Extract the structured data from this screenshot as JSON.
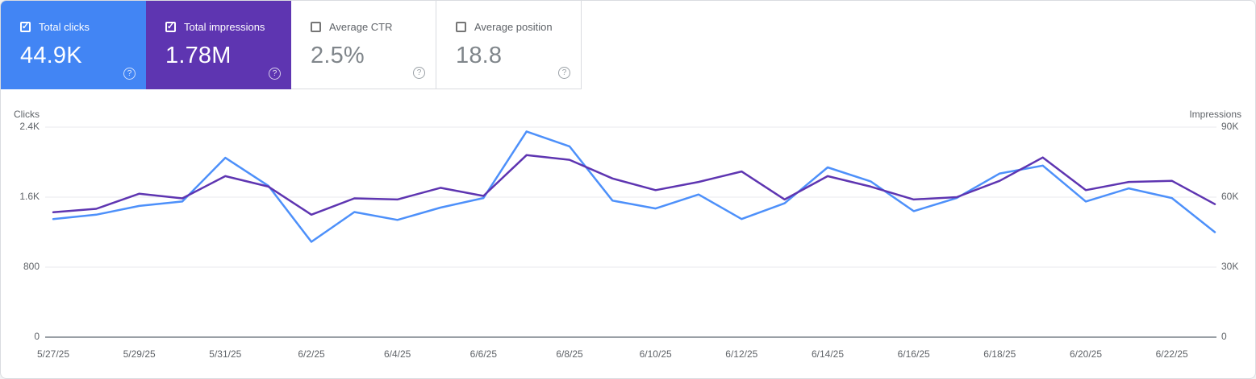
{
  "icons": {
    "help_glyph": "?",
    "check_glyph": "✓"
  },
  "cards": [
    {
      "label": "Total clicks",
      "value": "44.9K",
      "checked": true,
      "bg_color": "#4285f4"
    },
    {
      "label": "Total impressions",
      "value": "1.78M",
      "checked": true,
      "bg_color": "#5e35b1"
    },
    {
      "label": "Average CTR",
      "value": "2.5%",
      "checked": false,
      "bg_color": ""
    },
    {
      "label": "Average position",
      "value": "18.8",
      "checked": false,
      "bg_color": ""
    }
  ],
  "chart_data": {
    "type": "line",
    "x": [
      "5/27/25",
      "5/28/25",
      "5/29/25",
      "5/30/25",
      "5/31/25",
      "6/1/25",
      "6/2/25",
      "6/3/25",
      "6/4/25",
      "6/5/25",
      "6/6/25",
      "6/7/25",
      "6/8/25",
      "6/9/25",
      "6/10/25",
      "6/11/25",
      "6/12/25",
      "6/13/25",
      "6/14/25",
      "6/15/25",
      "6/16/25",
      "6/17/25",
      "6/18/25",
      "6/19/25",
      "6/20/25",
      "6/21/25",
      "6/22/25",
      "6/23/25"
    ],
    "x_tick_labels": [
      "5/27/25",
      "5/29/25",
      "5/31/25",
      "6/2/25",
      "6/4/25",
      "6/6/25",
      "6/8/25",
      "6/10/25",
      "6/12/25",
      "6/14/25",
      "6/16/25",
      "6/18/25",
      "6/20/25",
      "6/22/25"
    ],
    "x_tick_every": 2,
    "series": [
      {
        "name": "Clicks",
        "axis": "left",
        "color": "#4d90fa",
        "values": [
          1350,
          1400,
          1500,
          1550,
          2050,
          1730,
          1090,
          1430,
          1340,
          1480,
          1590,
          2350,
          2180,
          1560,
          1470,
          1630,
          1350,
          1530,
          1940,
          1780,
          1440,
          1590,
          1870,
          1960,
          1550,
          1700,
          1590,
          1200
        ]
      },
      {
        "name": "Impressions",
        "axis": "right",
        "color": "#5e35b1",
        "values": [
          53500,
          55000,
          61500,
          59500,
          69000,
          64500,
          52500,
          59500,
          59000,
          64000,
          60500,
          78000,
          76000,
          68000,
          63000,
          66500,
          71000,
          59000,
          69000,
          64500,
          59000,
          60000,
          67000,
          77000,
          63000,
          66500,
          67000,
          57000
        ]
      }
    ],
    "left_axis": {
      "label": "Clicks",
      "max": 2400,
      "ticks": [
        {
          "label": "2.4K",
          "value": 2400
        },
        {
          "label": "1.6K",
          "value": 1600
        },
        {
          "label": "800",
          "value": 800
        },
        {
          "label": "0",
          "value": 0
        }
      ]
    },
    "right_axis": {
      "label": "Impressions",
      "max": 90000,
      "ticks": [
        {
          "label": "90K",
          "value": 90000
        },
        {
          "label": "60K",
          "value": 60000
        },
        {
          "label": "30K",
          "value": 30000
        },
        {
          "label": "0",
          "value": 0
        }
      ]
    },
    "grid": true,
    "legend": "none",
    "grid_color": "#e8eaed",
    "axis_line_color": "#9aa0a6"
  }
}
